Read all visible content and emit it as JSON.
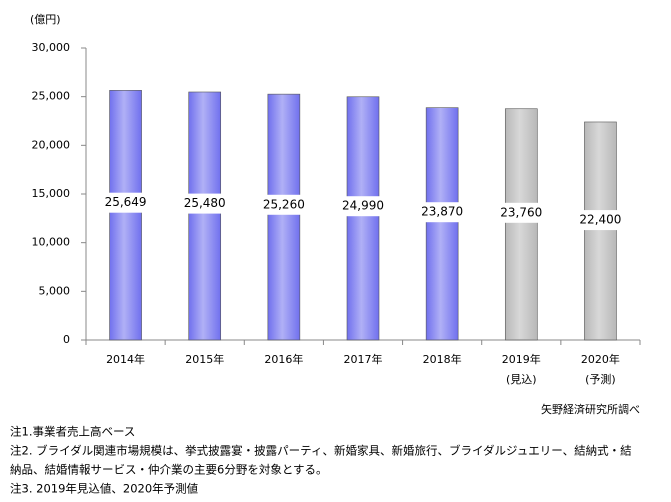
{
  "chart_data": {
    "type": "bar",
    "unit_label": "(億円)",
    "categories": [
      "2014年",
      "2015年",
      "2016年",
      "2017年",
      "2018年",
      "2019年",
      "2020年"
    ],
    "category_sublabels": [
      null,
      null,
      null,
      null,
      null,
      "(見込)",
      "(予測)"
    ],
    "values": [
      25649,
      25480,
      25260,
      24990,
      23870,
      23760,
      22400
    ],
    "value_labels": [
      "25,649",
      "25,480",
      "25,260",
      "24,990",
      "23,870",
      "23,760",
      "22,400"
    ],
    "colors": [
      "#7070ee",
      "#7070ee",
      "#7070ee",
      "#7070ee",
      "#7070ee",
      "#b8b8b8",
      "#b8b8b8"
    ],
    "ylim": [
      0,
      30000
    ],
    "yticks": [
      0,
      {
        "value": 5000,
        "label": "5,000"
      },
      {
        "value": 10000,
        "label": "10,000"
      },
      {
        "value": 15000,
        "label": "15,000"
      },
      {
        "value": 20000,
        "label": "20,000"
      },
      {
        "value": 25000,
        "label": "25,000"
      },
      {
        "value": 30000,
        "label": "30,000"
      }
    ],
    "grid": false,
    "source": "矢野経済研究所調べ",
    "notes": [
      "注1.事業者売上高ベース",
      "注2. ブライダル関連市場規模は、挙式披露宴・披露パーティ、新婚家具、新婚旅行、ブライダルジュエリー、結納式・結",
      "納品、結婚情報サービス・仲介業の主要6分野を対象とする。",
      "注3. 2019年見込値、2020年予測値"
    ]
  }
}
